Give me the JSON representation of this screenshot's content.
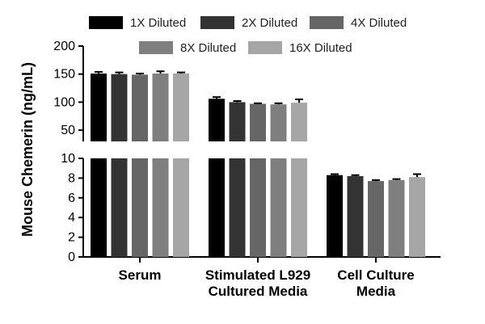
{
  "chart_data": {
    "type": "bar",
    "ylabel": "Mouse Chemerin (ng/mL)",
    "categories": [
      [
        "Serum"
      ],
      [
        "Stimulated L929",
        "Cultured Media"
      ],
      [
        "Cell Culture",
        "Media"
      ]
    ],
    "series": [
      {
        "name": "1X Diluted",
        "color": "#000000",
        "values": [
          151,
          106,
          8.3
        ],
        "errors": [
          3,
          3,
          0.1
        ]
      },
      {
        "name": "2X Diluted",
        "color": "#333333",
        "values": [
          150,
          100,
          8.2
        ],
        "errors": [
          3,
          2,
          0.1
        ]
      },
      {
        "name": "4X Diluted",
        "color": "#666666",
        "values": [
          149,
          97,
          7.7
        ],
        "errors": [
          2,
          1,
          0.1
        ]
      },
      {
        "name": "8X Diluted",
        "color": "#7f7f7f",
        "values": [
          151,
          96,
          7.8
        ],
        "errors": [
          4,
          2,
          0.1
        ]
      },
      {
        "name": "16X Diluted",
        "color": "#a6a6a6",
        "values": [
          151,
          99,
          8.1
        ],
        "errors": [
          2,
          6,
          0.3
        ]
      }
    ],
    "y_axis_segments": [
      {
        "range": [
          0,
          10
        ],
        "ticks": [
          0,
          2,
          4,
          6,
          8,
          10
        ]
      },
      {
        "range": [
          30,
          200
        ],
        "ticks": [
          50,
          100,
          150,
          200
        ]
      }
    ],
    "legend_position": "top"
  }
}
